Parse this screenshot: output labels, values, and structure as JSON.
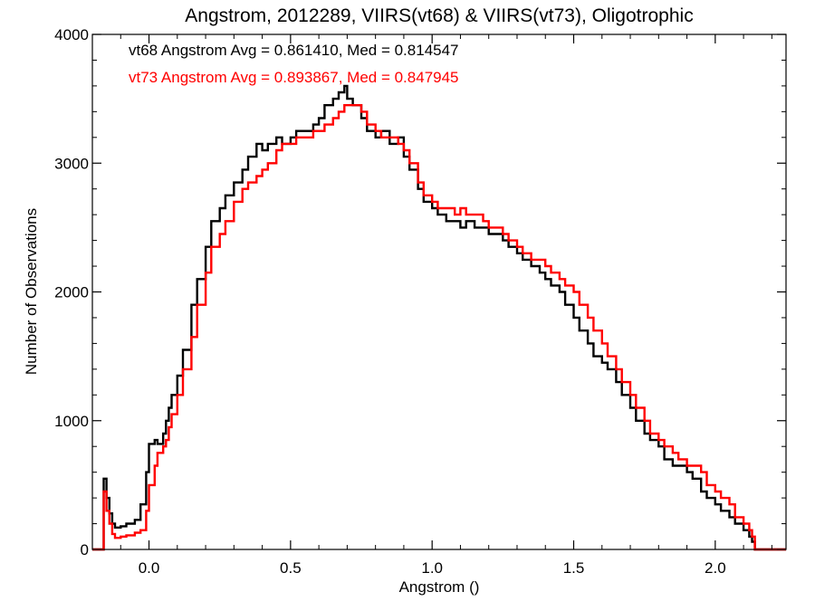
{
  "chart_data": {
    "type": "line",
    "title": "Angstrom, 2012289, VIIRS(vt68) & VIIRS(vt73), Oligotrophic",
    "xlabel": "Angstrom ()",
    "ylabel": "Number of Observations",
    "xlim": [
      -0.2,
      2.25
    ],
    "ylim": [
      0,
      4000
    ],
    "x_ticks": [
      0.0,
      0.5,
      1.0,
      1.5,
      2.0
    ],
    "x_tick_labels": [
      "0.0",
      "0.5",
      "1.0",
      "1.5",
      "2.0"
    ],
    "y_ticks": [
      0,
      1000,
      2000,
      3000,
      4000
    ],
    "y_tick_labels": [
      "0",
      "1000",
      "2000",
      "3000",
      "4000"
    ],
    "step": true,
    "grid": false,
    "legend": "top-left",
    "annotations": [
      {
        "text": "vt68 Angstrom Avg = 0.861410, Med = 0.814547",
        "color": "#000000"
      },
      {
        "text": "vt73 Angstrom Avg = 0.893867, Med = 0.847945",
        "color": "#ff0000"
      }
    ],
    "series": [
      {
        "color": "#000000",
        "x": [
          -0.2,
          -0.16,
          -0.15,
          -0.14,
          -0.13,
          -0.12,
          -0.1,
          -0.08,
          -0.05,
          -0.03,
          -0.01,
          0.0,
          0.02,
          0.03,
          0.05,
          0.06,
          0.07,
          0.08,
          0.1,
          0.12,
          0.15,
          0.17,
          0.2,
          0.22,
          0.25,
          0.27,
          0.3,
          0.33,
          0.35,
          0.38,
          0.4,
          0.42,
          0.45,
          0.47,
          0.5,
          0.52,
          0.55,
          0.58,
          0.6,
          0.62,
          0.65,
          0.67,
          0.69,
          0.7,
          0.72,
          0.75,
          0.77,
          0.8,
          0.82,
          0.85,
          0.88,
          0.9,
          0.92,
          0.95,
          0.97,
          1.0,
          1.02,
          1.05,
          1.08,
          1.1,
          1.12,
          1.15,
          1.18,
          1.2,
          1.22,
          1.25,
          1.27,
          1.3,
          1.32,
          1.35,
          1.38,
          1.4,
          1.42,
          1.45,
          1.47,
          1.5,
          1.52,
          1.55,
          1.57,
          1.6,
          1.62,
          1.65,
          1.67,
          1.7,
          1.72,
          1.75,
          1.77,
          1.8,
          1.82,
          1.85,
          1.87,
          1.9,
          1.92,
          1.95,
          1.97,
          2.0,
          2.02,
          2.05,
          2.07,
          2.1,
          2.12,
          2.13,
          2.14,
          2.25
        ],
        "y": [
          0,
          550,
          400,
          280,
          200,
          170,
          180,
          200,
          230,
          350,
          600,
          820,
          850,
          820,
          900,
          1000,
          1100,
          1200,
          1350,
          1550,
          1900,
          2100,
          2350,
          2550,
          2650,
          2750,
          2850,
          2950,
          3050,
          3150,
          3100,
          3150,
          3200,
          3150,
          3200,
          3250,
          3250,
          3300,
          3350,
          3450,
          3500,
          3550,
          3600,
          3500,
          3450,
          3350,
          3250,
          3200,
          3250,
          3150,
          3200,
          3050,
          2950,
          2800,
          2700,
          2650,
          2600,
          2550,
          2550,
          2500,
          2550,
          2500,
          2500,
          2450,
          2450,
          2400,
          2350,
          2300,
          2250,
          2200,
          2150,
          2100,
          2050,
          2000,
          1900,
          1800,
          1700,
          1600,
          1500,
          1450,
          1400,
          1300,
          1200,
          1100,
          1000,
          900,
          850,
          800,
          700,
          650,
          650,
          600,
          550,
          450,
          400,
          350,
          300,
          250,
          200,
          150,
          100,
          60,
          0,
          0
        ]
      },
      {
        "color": "#ff0000",
        "x": [
          -0.2,
          -0.16,
          -0.15,
          -0.14,
          -0.13,
          -0.12,
          -0.1,
          -0.08,
          -0.05,
          -0.03,
          -0.01,
          0.0,
          0.02,
          0.03,
          0.05,
          0.06,
          0.07,
          0.08,
          0.1,
          0.12,
          0.15,
          0.17,
          0.2,
          0.22,
          0.25,
          0.27,
          0.3,
          0.33,
          0.35,
          0.38,
          0.4,
          0.42,
          0.45,
          0.47,
          0.5,
          0.52,
          0.55,
          0.58,
          0.6,
          0.62,
          0.65,
          0.67,
          0.69,
          0.7,
          0.72,
          0.75,
          0.77,
          0.8,
          0.82,
          0.85,
          0.88,
          0.9,
          0.92,
          0.95,
          0.97,
          1.0,
          1.02,
          1.05,
          1.08,
          1.1,
          1.12,
          1.15,
          1.18,
          1.2,
          1.22,
          1.25,
          1.27,
          1.3,
          1.32,
          1.35,
          1.38,
          1.4,
          1.42,
          1.45,
          1.47,
          1.5,
          1.52,
          1.55,
          1.57,
          1.6,
          1.62,
          1.65,
          1.67,
          1.7,
          1.72,
          1.75,
          1.77,
          1.8,
          1.82,
          1.85,
          1.87,
          1.9,
          1.92,
          1.95,
          1.97,
          2.0,
          2.02,
          2.05,
          2.07,
          2.1,
          2.12,
          2.13,
          2.14,
          2.25
        ],
        "y": [
          0,
          450,
          300,
          200,
          120,
          90,
          100,
          110,
          130,
          150,
          300,
          500,
          650,
          750,
          800,
          850,
          950,
          1050,
          1200,
          1400,
          1650,
          1900,
          2150,
          2350,
          2450,
          2550,
          2700,
          2800,
          2850,
          2900,
          2950,
          3000,
          3100,
          3150,
          3150,
          3200,
          3200,
          3250,
          3250,
          3300,
          3350,
          3400,
          3450,
          3450,
          3450,
          3400,
          3300,
          3250,
          3200,
          3200,
          3150,
          3100,
          3000,
          2850,
          2750,
          2700,
          2650,
          2650,
          2600,
          2650,
          2600,
          2600,
          2550,
          2500,
          2500,
          2450,
          2400,
          2350,
          2300,
          2250,
          2250,
          2200,
          2150,
          2100,
          2050,
          2000,
          1900,
          1800,
          1700,
          1600,
          1500,
          1400,
          1300,
          1200,
          1100,
          1000,
          900,
          850,
          800,
          750,
          700,
          650,
          650,
          600,
          500,
          450,
          400,
          350,
          250,
          200,
          150,
          100,
          0,
          0
        ]
      }
    ]
  }
}
